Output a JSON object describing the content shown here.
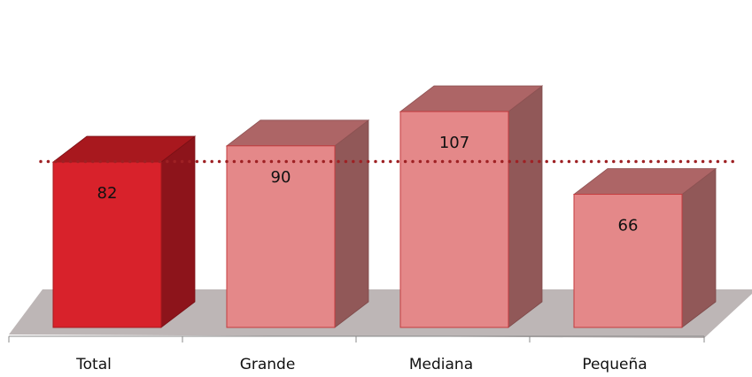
{
  "chart_data": {
    "type": "bar",
    "categories": [
      "Total",
      "Grande",
      "Mediana",
      "Pequeña"
    ],
    "values": [
      82,
      90,
      107,
      66
    ],
    "reference_line": {
      "value": 82,
      "style": "dotted"
    },
    "highlight_index": 0,
    "title": "",
    "xlabel": "",
    "ylabel": "",
    "ylim": [
      0,
      120
    ],
    "grid": false,
    "legend": "none"
  },
  "colors": {
    "highlight_front": "#d8222b",
    "highlight_top": "#a8181e",
    "highlight_side": "#8d141b",
    "bar_front": "#e48889",
    "bar_top": "#ad6566",
    "bar_side": "#915858",
    "floor": "#bdb6b6",
    "reference_line": "#9e2124",
    "axis": "#888888"
  }
}
